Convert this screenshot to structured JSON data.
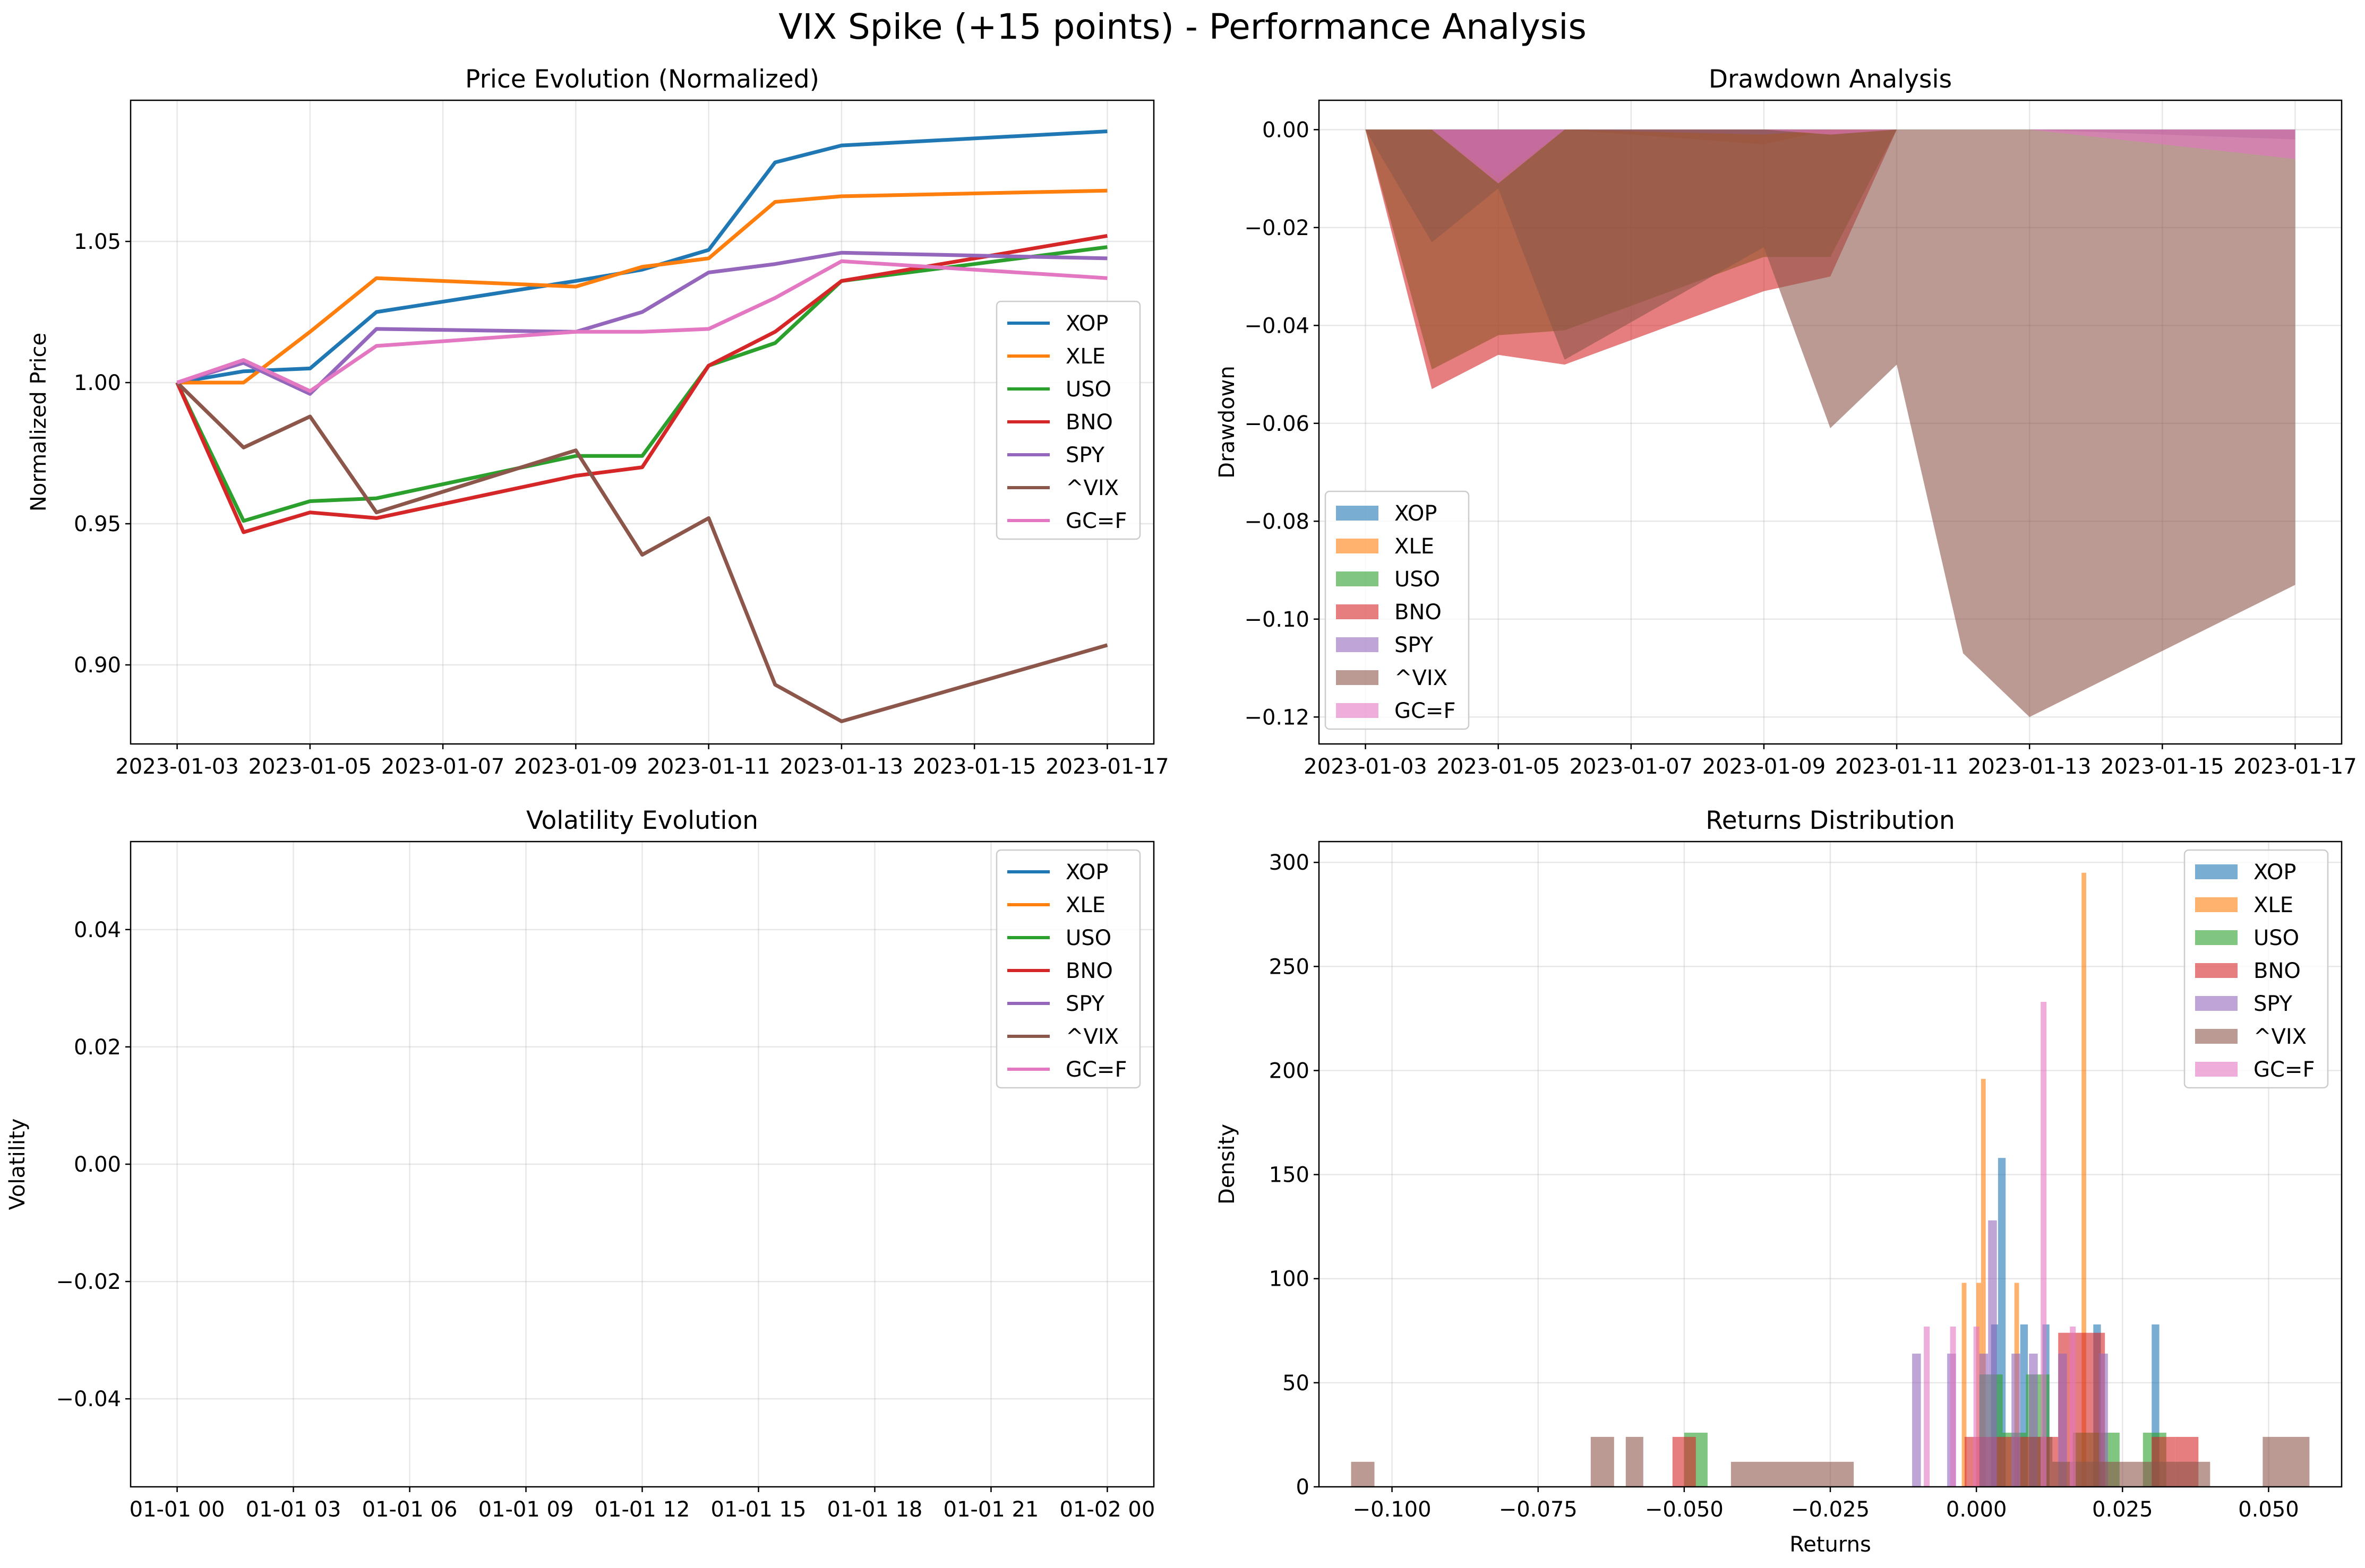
{
  "figure": {
    "title": "VIX Spike (+15 points) - Performance Analysis"
  },
  "colors": {
    "XOP": "#1f77b4",
    "XLE": "#ff7f0e",
    "USO": "#2ca02c",
    "BNO": "#d62728",
    "SPY": "#9467bd",
    "^VIX": "#8c564b",
    "GC=F": "#e377c2"
  },
  "chart_data": [
    {
      "type": "line",
      "title": "Price Evolution (Normalized)",
      "xlabel": "",
      "ylabel": "Normalized Price",
      "x": [
        "2023-01-03",
        "2023-01-04",
        "2023-01-05",
        "2023-01-06",
        "2023-01-09",
        "2023-01-10",
        "2023-01-11",
        "2023-01-12",
        "2023-01-13",
        "2023-01-17"
      ],
      "xticks": [
        "2023-01-03",
        "2023-01-05",
        "2023-01-07",
        "2023-01-09",
        "2023-01-11",
        "2023-01-13",
        "2023-01-15",
        "2023-01-17"
      ],
      "yticks": [
        "0.90",
        "0.95",
        "1.00",
        "1.05"
      ],
      "ylim": [
        0.872,
        1.1
      ],
      "grid": true,
      "legend": "center-right",
      "series": [
        {
          "name": "XOP",
          "values": [
            1.0,
            1.004,
            1.005,
            1.025,
            1.036,
            1.04,
            1.047,
            1.078,
            1.084,
            1.089
          ]
        },
        {
          "name": "XLE",
          "values": [
            1.0,
            1.0,
            1.018,
            1.037,
            1.034,
            1.041,
            1.044,
            1.064,
            1.066,
            1.068
          ]
        },
        {
          "name": "USO",
          "values": [
            1.0,
            0.951,
            0.958,
            0.959,
            0.974,
            0.974,
            1.006,
            1.014,
            1.036,
            1.048
          ]
        },
        {
          "name": "BNO",
          "values": [
            1.0,
            0.947,
            0.954,
            0.952,
            0.967,
            0.97,
            1.006,
            1.018,
            1.036,
            1.052
          ]
        },
        {
          "name": "SPY",
          "values": [
            1.0,
            1.007,
            0.996,
            1.019,
            1.018,
            1.025,
            1.039,
            1.042,
            1.046,
            1.044
          ]
        },
        {
          "name": "^VIX",
          "values": [
            1.0,
            0.977,
            0.988,
            0.954,
            0.976,
            0.939,
            0.952,
            0.893,
            0.88,
            0.907
          ]
        },
        {
          "name": "GC=F",
          "values": [
            1.0,
            1.008,
            0.997,
            1.013,
            1.018,
            1.018,
            1.019,
            1.03,
            1.043,
            1.037
          ]
        }
      ]
    },
    {
      "type": "area",
      "title": "Drawdown Analysis",
      "xlabel": "",
      "ylabel": "Drawdown",
      "x": [
        "2023-01-03",
        "2023-01-04",
        "2023-01-05",
        "2023-01-06",
        "2023-01-09",
        "2023-01-10",
        "2023-01-11",
        "2023-01-12",
        "2023-01-13",
        "2023-01-17"
      ],
      "xticks": [
        "2023-01-03",
        "2023-01-05",
        "2023-01-07",
        "2023-01-09",
        "2023-01-11",
        "2023-01-13",
        "2023-01-15",
        "2023-01-17"
      ],
      "yticks": [
        "0.00",
        "−0.02",
        "−0.04",
        "−0.06",
        "−0.08",
        "−0.10",
        "−0.12"
      ],
      "ylim": [
        -0.1255,
        0.006
      ],
      "grid": true,
      "legend": "bottom-left",
      "series": [
        {
          "name": "XOP",
          "values": [
            0,
            0,
            0,
            0,
            0,
            0,
            0,
            0,
            0,
            0
          ]
        },
        {
          "name": "XLE",
          "values": [
            0,
            0,
            0,
            0,
            -0.003,
            0,
            0,
            0,
            0,
            0
          ]
        },
        {
          "name": "USO",
          "values": [
            0,
            -0.049,
            -0.042,
            -0.041,
            -0.026,
            -0.026,
            0,
            0,
            0,
            0
          ]
        },
        {
          "name": "BNO",
          "values": [
            0,
            -0.053,
            -0.046,
            -0.048,
            -0.033,
            -0.03,
            0,
            0,
            0,
            0
          ]
        },
        {
          "name": "SPY",
          "values": [
            0,
            0,
            -0.01,
            0,
            -0.001,
            0,
            0,
            0,
            0,
            -0.002
          ]
        },
        {
          "name": "^VIX",
          "values": [
            0,
            -0.023,
            -0.012,
            -0.047,
            -0.024,
            -0.061,
            -0.048,
            -0.107,
            -0.12,
            -0.093
          ]
        },
        {
          "name": "GC=F",
          "values": [
            0,
            0,
            -0.011,
            0,
            0,
            -0.001,
            0,
            0,
            0,
            -0.006
          ]
        }
      ]
    },
    {
      "type": "line",
      "title": "Volatility Evolution",
      "xlabel": "",
      "ylabel": "Volatility",
      "xticks": [
        "01-01 00",
        "01-01 03",
        "01-01 06",
        "01-01 09",
        "01-01 12",
        "01-01 15",
        "01-01 18",
        "01-01 21",
        "01-02 00"
      ],
      "yticks": [
        "0.04",
        "0.02",
        "0.00",
        "−0.02",
        "−0.04"
      ],
      "ylim": [
        -0.055,
        0.055
      ],
      "grid": true,
      "legend": "top-right",
      "series": [
        {
          "name": "XOP",
          "values": []
        },
        {
          "name": "XLE",
          "values": []
        },
        {
          "name": "USO",
          "values": []
        },
        {
          "name": "BNO",
          "values": []
        },
        {
          "name": "SPY",
          "values": []
        },
        {
          "name": "^VIX",
          "values": []
        },
        {
          "name": "GC=F",
          "values": []
        }
      ]
    },
    {
      "type": "bar",
      "title": "Returns Distribution",
      "xlabel": "Returns",
      "ylabel": "Density",
      "xticks": [
        "−0.100",
        "−0.075",
        "−0.050",
        "−0.025",
        "0.000",
        "0.025",
        "0.050"
      ],
      "yticks": [
        "0",
        "50",
        "100",
        "150",
        "200",
        "250",
        "300"
      ],
      "xlim": [
        -0.1125,
        0.0625
      ],
      "ylim": [
        0,
        310
      ],
      "grid": true,
      "legend": "top-right",
      "series": [
        {
          "name": "XOP",
          "bins": [
            [
              0.0025,
              0.0037,
              78
            ],
            [
              0.0037,
              0.005,
              158
            ],
            [
              0.0075,
              0.0088,
              78
            ],
            [
              0.0113,
              0.0125,
              78
            ],
            [
              0.02,
              0.0213,
              78
            ],
            [
              0.03,
              0.0313,
              78
            ]
          ]
        },
        {
          "name": "XLE",
          "bins": [
            [
              -0.0025,
              -0.0017,
              98
            ],
            [
              0.0,
              0.0008,
              98
            ],
            [
              0.0008,
              0.0016,
              196
            ],
            [
              0.0065,
              0.0073,
              98
            ],
            [
              0.018,
              0.0188,
              295
            ]
          ]
        },
        {
          "name": "USO",
          "bins": [
            [
              -0.05,
              -0.046,
              26
            ],
            [
              0.0005,
              0.0045,
              54
            ],
            [
              0.0045,
              0.0085,
              26
            ],
            [
              0.0085,
              0.0125,
              54
            ],
            [
              0.0165,
              0.0205,
              26
            ],
            [
              0.0205,
              0.0245,
              26
            ],
            [
              0.0285,
              0.0325,
              26
            ]
          ]
        },
        {
          "name": "BNO",
          "bins": [
            [
              -0.052,
              -0.048,
              24
            ],
            [
              -0.002,
              0.002,
              24
            ],
            [
              0.002,
              0.006,
              24
            ],
            [
              0.006,
              0.01,
              24
            ],
            [
              0.01,
              0.014,
              24
            ],
            [
              0.014,
              0.018,
              74
            ],
            [
              0.018,
              0.022,
              74
            ],
            [
              0.03,
              0.034,
              24
            ],
            [
              0.034,
              0.038,
              24
            ]
          ]
        },
        {
          "name": "SPY",
          "bins": [
            [
              -0.011,
              -0.0095,
              64
            ],
            [
              -0.005,
              -0.0035,
              64
            ],
            [
              0.0005,
              0.002,
              64
            ],
            [
              0.002,
              0.0035,
              128
            ],
            [
              0.006,
              0.0075,
              64
            ],
            [
              0.009,
              0.0105,
              64
            ],
            [
              0.014,
              0.0155,
              64
            ],
            [
              0.021,
              0.0225,
              64
            ]
          ]
        },
        {
          "name": "^VIX",
          "bins": [
            [
              -0.107,
              -0.103,
              12
            ],
            [
              -0.066,
              -0.062,
              24
            ],
            [
              -0.06,
              -0.057,
              24
            ],
            [
              -0.042,
              -0.032,
              12
            ],
            [
              -0.032,
              -0.021,
              12
            ],
            [
              0.009,
              0.013,
              24
            ],
            [
              0.013,
              0.017,
              12
            ],
            [
              0.017,
              0.04,
              12
            ],
            [
              0.049,
              0.057,
              24
            ]
          ]
        },
        {
          "name": "GC=F",
          "bins": [
            [
              -0.009,
              -0.008,
              77
            ],
            [
              -0.0045,
              -0.0035,
              77
            ],
            [
              -0.0005,
              0.0005,
              77
            ],
            [
              0.011,
              0.012,
              233
            ],
            [
              0.016,
              0.017,
              77
            ]
          ]
        }
      ]
    }
  ]
}
